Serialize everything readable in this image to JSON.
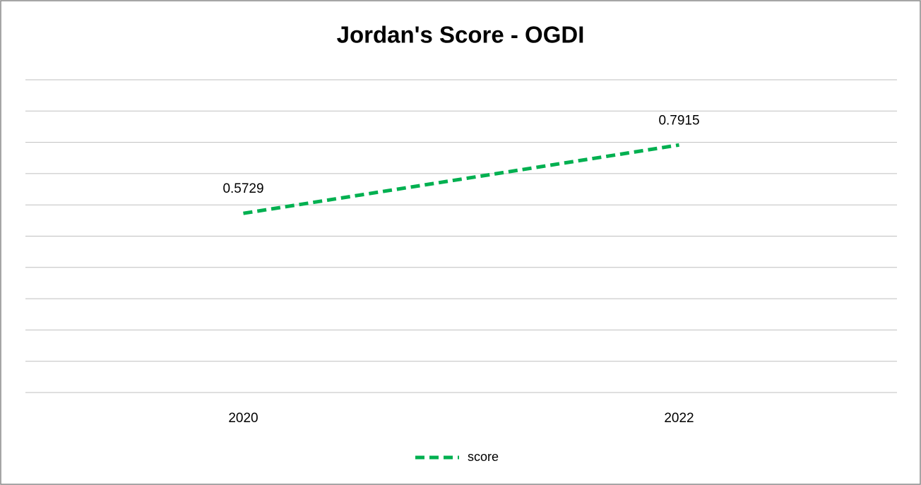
{
  "chart_data": {
    "type": "line",
    "title": "Jordan's Score - OGDI",
    "categories": [
      "2020",
      "2022"
    ],
    "series": [
      {
        "name": "score",
        "color": "#00b050",
        "values": [
          0.5729,
          0.7915
        ]
      }
    ],
    "ylim": [
      0,
      1
    ],
    "yticks": [
      0,
      0.1,
      0.2,
      0.3,
      0.4,
      0.5,
      0.6,
      0.7,
      0.8,
      0.9,
      1
    ],
    "grid": true,
    "legend": "bottom",
    "dashed": true
  }
}
